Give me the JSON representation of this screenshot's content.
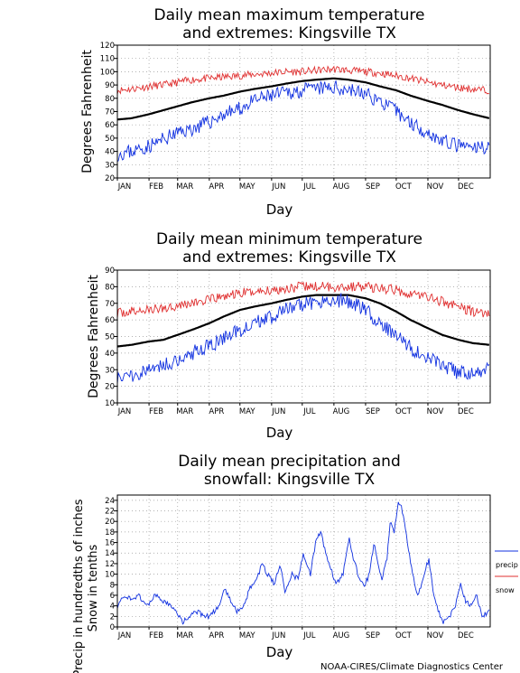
{
  "footer": "NOAA-CIRES/Climate Diagnostics Center",
  "colors": {
    "high": "#e03030",
    "mean": "#000000",
    "low": "#1030e0",
    "precip": "#1030e0",
    "snow": "#e03030",
    "grid": "#999999"
  },
  "chart_data": [
    {
      "type": "line",
      "title_lines": [
        "Daily mean maximum temperature",
        "and extremes: Kingsville TX"
      ],
      "xlabel": "Day",
      "ylabel": "Degrees Fahrenheit",
      "ylim": [
        20,
        120
      ],
      "yticks": [
        20,
        30,
        40,
        50,
        60,
        70,
        80,
        90,
        100,
        110,
        120
      ],
      "months": [
        "JAN",
        "FEB",
        "MAR",
        "APR",
        "MAY",
        "JUN",
        "JUL",
        "AUG",
        "SEP",
        "OCT",
        "NOV",
        "DEC"
      ],
      "grid": true,
      "series": [
        {
          "role": "high",
          "keys": [
            [
              1,
              86
            ],
            [
              15,
              87
            ],
            [
              32,
              89
            ],
            [
              46,
              90
            ],
            [
              60,
              92
            ],
            [
              74,
              94
            ],
            [
              91,
              95
            ],
            [
              105,
              96
            ],
            [
              121,
              97
            ],
            [
              135,
              98
            ],
            [
              152,
              99
            ],
            [
              166,
              100
            ],
            [
              182,
              100
            ],
            [
              196,
              101
            ],
            [
              213,
              102
            ],
            [
              227,
              101
            ],
            [
              244,
              100
            ],
            [
              258,
              99
            ],
            [
              274,
              97
            ],
            [
              288,
              95
            ],
            [
              305,
              92
            ],
            [
              319,
              90
            ],
            [
              335,
              88
            ],
            [
              349,
              87
            ],
            [
              365,
              86
            ]
          ],
          "noise": 2.8,
          "seed": 11
        },
        {
          "role": "mean",
          "keys": [
            [
              1,
              64
            ],
            [
              15,
              65
            ],
            [
              32,
              68
            ],
            [
              46,
              71
            ],
            [
              60,
              74
            ],
            [
              74,
              77
            ],
            [
              91,
              80
            ],
            [
              105,
              82
            ],
            [
              121,
              85
            ],
            [
              135,
              87
            ],
            [
              152,
              89
            ],
            [
              166,
              91
            ],
            [
              182,
              93
            ],
            [
              196,
              94
            ],
            [
              213,
              95
            ],
            [
              227,
              94
            ],
            [
              244,
              92
            ],
            [
              258,
              89
            ],
            [
              274,
              86
            ],
            [
              288,
              82
            ],
            [
              305,
              78
            ],
            [
              319,
              75
            ],
            [
              335,
              71
            ],
            [
              349,
              68
            ],
            [
              365,
              65
            ]
          ],
          "noise": 0,
          "seed": 0
        },
        {
          "role": "low",
          "keys": [
            [
              1,
              38
            ],
            [
              15,
              40
            ],
            [
              32,
              44
            ],
            [
              46,
              49
            ],
            [
              60,
              54
            ],
            [
              74,
              57
            ],
            [
              91,
              62
            ],
            [
              105,
              68
            ],
            [
              121,
              72
            ],
            [
              135,
              78
            ],
            [
              152,
              82
            ],
            [
              166,
              84
            ],
            [
              182,
              86
            ],
            [
              196,
              87
            ],
            [
              213,
              88
            ],
            [
              227,
              87
            ],
            [
              244,
              83
            ],
            [
              258,
              78
            ],
            [
              274,
              70
            ],
            [
              288,
              62
            ],
            [
              305,
              54
            ],
            [
              319,
              48
            ],
            [
              335,
              44
            ],
            [
              349,
              42
            ],
            [
              365,
              44
            ]
          ],
          "noise": 5.5,
          "seed": 23
        }
      ]
    },
    {
      "type": "line",
      "title_lines": [
        "Daily mean minimum temperature",
        "and extremes: Kingsville TX"
      ],
      "xlabel": "Day",
      "ylabel": "Degrees Fahrenheit",
      "ylim": [
        10,
        90
      ],
      "yticks": [
        10,
        20,
        30,
        40,
        50,
        60,
        70,
        80,
        90
      ],
      "months": [
        "JAN",
        "FEB",
        "MAR",
        "APR",
        "MAY",
        "JUN",
        "JUL",
        "AUG",
        "SEP",
        "OCT",
        "NOV",
        "DEC"
      ],
      "grid": true,
      "series": [
        {
          "role": "high",
          "keys": [
            [
              1,
              64
            ],
            [
              15,
              65
            ],
            [
              32,
              66
            ],
            [
              46,
              67
            ],
            [
              60,
              69
            ],
            [
              74,
              70
            ],
            [
              91,
              72
            ],
            [
              105,
              74
            ],
            [
              121,
              76
            ],
            [
              135,
              77
            ],
            [
              152,
              78
            ],
            [
              166,
              79
            ],
            [
              182,
              80
            ],
            [
              196,
              80
            ],
            [
              213,
              80
            ],
            [
              227,
              80
            ],
            [
              244,
              80
            ],
            [
              258,
              79
            ],
            [
              274,
              78
            ],
            [
              288,
              76
            ],
            [
              305,
              74
            ],
            [
              319,
              71
            ],
            [
              335,
              68
            ],
            [
              349,
              65
            ],
            [
              365,
              64
            ]
          ],
          "noise": 3.0,
          "seed": 37
        },
        {
          "role": "mean",
          "keys": [
            [
              1,
              44
            ],
            [
              15,
              45
            ],
            [
              32,
              47
            ],
            [
              46,
              48
            ],
            [
              60,
              51
            ],
            [
              74,
              54
            ],
            [
              91,
              58
            ],
            [
              105,
              62
            ],
            [
              121,
              66
            ],
            [
              135,
              68
            ],
            [
              152,
              70
            ],
            [
              166,
              72
            ],
            [
              182,
              74
            ],
            [
              196,
              75
            ],
            [
              213,
              75
            ],
            [
              227,
              75
            ],
            [
              244,
              73
            ],
            [
              258,
              70
            ],
            [
              274,
              65
            ],
            [
              288,
              60
            ],
            [
              305,
              55
            ],
            [
              319,
              51
            ],
            [
              335,
              48
            ],
            [
              349,
              46
            ],
            [
              365,
              45
            ]
          ],
          "noise": 0,
          "seed": 0
        },
        {
          "role": "low",
          "keys": [
            [
              1,
              26
            ],
            [
              15,
              27
            ],
            [
              32,
              30
            ],
            [
              46,
              33
            ],
            [
              60,
              36
            ],
            [
              74,
              40
            ],
            [
              91,
              44
            ],
            [
              105,
              49
            ],
            [
              121,
              54
            ],
            [
              135,
              58
            ],
            [
              152,
              62
            ],
            [
              166,
              66
            ],
            [
              182,
              69
            ],
            [
              196,
              71
            ],
            [
              213,
              72
            ],
            [
              227,
              71
            ],
            [
              244,
              66
            ],
            [
              258,
              58
            ],
            [
              274,
              50
            ],
            [
              288,
              43
            ],
            [
              305,
              37
            ],
            [
              319,
              32
            ],
            [
              335,
              28
            ],
            [
              349,
              27
            ],
            [
              365,
              30
            ]
          ],
          "noise": 4.5,
          "seed": 51
        }
      ]
    },
    {
      "type": "line",
      "title_lines": [
        "Daily mean precipitation and",
        "snowfall: Kingsville TX"
      ],
      "xlabel": "Day",
      "ylabel_lines": [
        "Precip in hundredths of inches",
        "Snow in tenths"
      ],
      "ylim": [
        0,
        25
      ],
      "yticks": [
        0,
        2,
        4,
        6,
        8,
        10,
        12,
        14,
        16,
        18,
        20,
        22,
        24
      ],
      "months": [
        "JAN",
        "FEB",
        "MAR",
        "APR",
        "MAY",
        "JUN",
        "JUL",
        "AUG",
        "SEP",
        "OCT",
        "NOV",
        "DEC"
      ],
      "grid": true,
      "legend": {
        "position": "right",
        "items": [
          "precip",
          "snow"
        ]
      },
      "series": [
        {
          "role": "precip",
          "name": "precip",
          "keys": [
            [
              1,
              4
            ],
            [
              8,
              6
            ],
            [
              15,
              5
            ],
            [
              22,
              6
            ],
            [
              30,
              4
            ],
            [
              38,
              6
            ],
            [
              45,
              5
            ],
            [
              52,
              4
            ],
            [
              58,
              3
            ],
            [
              65,
              1
            ],
            [
              72,
              2
            ],
            [
              80,
              3
            ],
            [
              85,
              2
            ],
            [
              92,
              2
            ],
            [
              100,
              4
            ],
            [
              106,
              7
            ],
            [
              112,
              5
            ],
            [
              118,
              3
            ],
            [
              125,
              4
            ],
            [
              130,
              7
            ],
            [
              137,
              9
            ],
            [
              143,
              12
            ],
            [
              148,
              10
            ],
            [
              155,
              8
            ],
            [
              160,
              12
            ],
            [
              165,
              7
            ],
            [
              172,
              10
            ],
            [
              178,
              9
            ],
            [
              183,
              14
            ],
            [
              190,
              10
            ],
            [
              195,
              16
            ],
            [
              200,
              18
            ],
            [
              205,
              14
            ],
            [
              210,
              11
            ],
            [
              215,
              8
            ],
            [
              222,
              10
            ],
            [
              228,
              17
            ],
            [
              232,
              13
            ],
            [
              238,
              9
            ],
            [
              243,
              8
            ],
            [
              248,
              10
            ],
            [
              252,
              16
            ],
            [
              256,
              12
            ],
            [
              260,
              9
            ],
            [
              265,
              13
            ],
            [
              268,
              20
            ],
            [
              272,
              18
            ],
            [
              276,
              24
            ],
            [
              280,
              22
            ],
            [
              285,
              16
            ],
            [
              290,
              10
            ],
            [
              295,
              6
            ],
            [
              300,
              9
            ],
            [
              306,
              13
            ],
            [
              310,
              7
            ],
            [
              315,
              3
            ],
            [
              320,
              1
            ],
            [
              326,
              2
            ],
            [
              332,
              4
            ],
            [
              337,
              8
            ],
            [
              342,
              5
            ],
            [
              348,
              4
            ],
            [
              353,
              6
            ],
            [
              358,
              2
            ],
            [
              365,
              3
            ]
          ],
          "noise": 0.5,
          "seed": 71
        },
        {
          "role": "snow",
          "name": "snow",
          "keys": [
            [
              1,
              0
            ],
            [
              365,
              0
            ]
          ],
          "noise": 0,
          "seed": 0
        }
      ]
    }
  ]
}
